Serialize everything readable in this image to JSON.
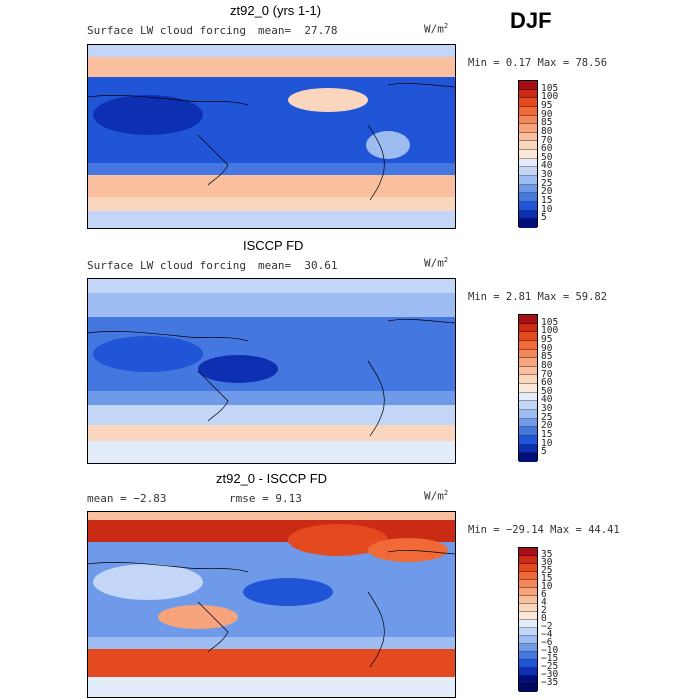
{
  "season": "DJF",
  "panels": [
    {
      "title": "zt92_0 (yrs 1-1)",
      "left_label": "Surface LW cloud forcing",
      "mean_label": "mean=",
      "mean_value": "27.78",
      "units": "W/m",
      "units_exp": "2",
      "minmax": "Min =   0.17 Max =  78.56",
      "colorbar": {
        "labels": [
          "105",
          "100",
          "95",
          "90",
          "85",
          "80",
          "70",
          "60",
          "50",
          "40",
          "30",
          "25",
          "20",
          "15",
          "10",
          "5"
        ],
        "colors": [
          "#a50f15",
          "#cb2a14",
          "#e34a1f",
          "#f06a38",
          "#f5885a",
          "#f7a47c",
          "#f9bf9e",
          "#fad6bf",
          "#fde8d8",
          "#e3ecfb",
          "#c3d6f8",
          "#9dbcf2",
          "#6f9aea",
          "#4577e0",
          "#1f55d6",
          "#0d2fb2",
          "#020f7a"
        ]
      }
    },
    {
      "title": "ISCCP FD",
      "left_label": "Surface LW cloud forcing",
      "mean_label": "mean=",
      "mean_value": "30.61",
      "units": "W/m",
      "units_exp": "2",
      "minmax": "Min =   2.81 Max =  59.82",
      "colorbar": {
        "labels": [
          "105",
          "100",
          "95",
          "90",
          "85",
          "80",
          "70",
          "60",
          "50",
          "40",
          "30",
          "25",
          "20",
          "15",
          "10",
          "5"
        ],
        "colors": [
          "#a50f15",
          "#cb2a14",
          "#e34a1f",
          "#f06a38",
          "#f5885a",
          "#f7a47c",
          "#f9bf9e",
          "#fad6bf",
          "#fde8d8",
          "#e3ecfb",
          "#c3d6f8",
          "#9dbcf2",
          "#6f9aea",
          "#4577e0",
          "#1f55d6",
          "#0d2fb2",
          "#020f7a"
        ]
      }
    },
    {
      "title": "zt92_0 - ISCCP FD",
      "mean_text": "mean =  −2.83",
      "rmse_text": "rmse =   9.13",
      "units": "W/m",
      "units_exp": "2",
      "minmax": "Min = −29.14 Max =  44.41",
      "colorbar": {
        "labels": [
          "35",
          "30",
          "25",
          "15",
          "10",
          "6",
          "4",
          "2",
          "0",
          "−2",
          "−4",
          "−6",
          "−10",
          "−15",
          "−25",
          "−30",
          "−35"
        ],
        "colors": [
          "#a50f15",
          "#cb2a14",
          "#e34a1f",
          "#f06a38",
          "#f5885a",
          "#f7a47c",
          "#f9bf9e",
          "#fad6bf",
          "#fde8d8",
          "#e3ecfb",
          "#c3d6f8",
          "#9dbcf2",
          "#6f9aea",
          "#4577e0",
          "#1f55d6",
          "#0d2fb2",
          "#020f7a",
          "#010860"
        ]
      }
    }
  ]
}
